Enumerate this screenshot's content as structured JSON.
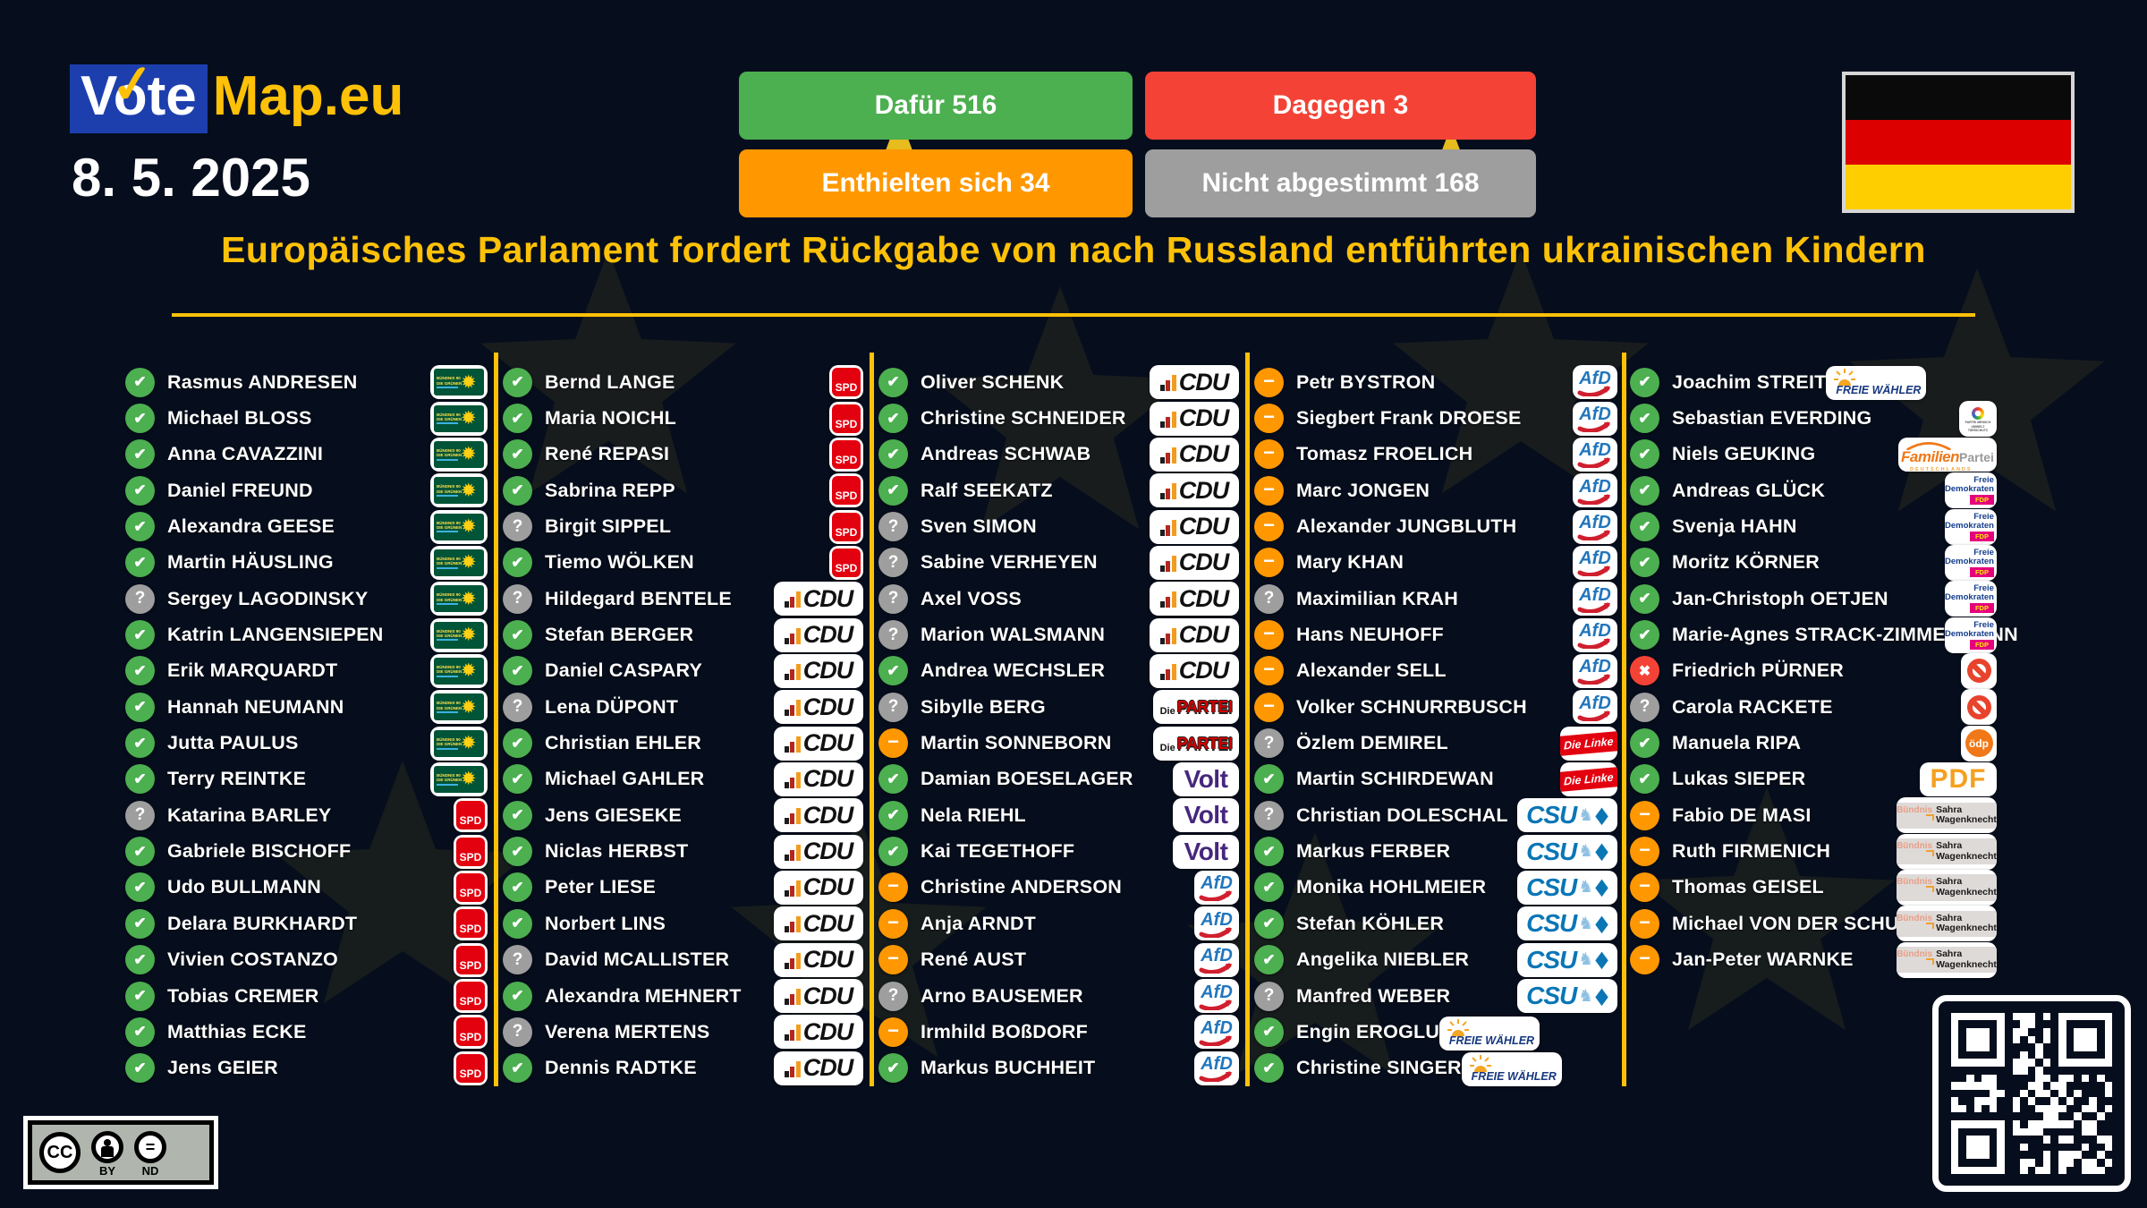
{
  "colors": {
    "accent": "#ffc107",
    "brand_blue": "#1d3fae",
    "background": "#060e1d"
  },
  "status_colors": {
    "yes": "#4caf50",
    "no": "#f44336",
    "abstain": "#ff9800",
    "unknown": "#9e9e9e"
  },
  "status_glyphs": {
    "yes": "✔",
    "no": "✖",
    "abstain": "−",
    "unknown": "?"
  },
  "header": {
    "brand": {
      "vote": "Vote",
      "map": "Map.eu",
      "check": "✓"
    },
    "date": "8. 5. 2025",
    "results": [
      {
        "label": "Dafür 516",
        "status": "yes"
      },
      {
        "label": "Dagegen 3",
        "status": "no"
      },
      {
        "label": "Enthielten sich 34",
        "status": "abstain"
      },
      {
        "label": "Nicht abgestimmt 168",
        "status": "unknown"
      }
    ],
    "flag": {
      "country": "Deutschland",
      "stripes": [
        "#0a0a0a",
        "#dd0000",
        "#ffce00"
      ]
    },
    "title": "Europäisches Parlament fordert Rückgabe von nach Russland entführten ukrainischen Kindern"
  },
  "license": {
    "cc": "CC",
    "by": "BY",
    "nd": "ND"
  },
  "parties": {
    "gruene": {
      "l1": "BÜNDNIS 90",
      "l2": "DIE GRÜNEN"
    },
    "spd": {
      "t": "SPD"
    },
    "cdu": {
      "t": "CDU"
    },
    "partei": {
      "p": "Die",
      "t": "PARTEI"
    },
    "volt": {
      "t": "Volt"
    },
    "afd": {
      "t": "AfD"
    },
    "linke": {
      "t": "Die Linke"
    },
    "csu": {
      "t": "CSU"
    },
    "fw": {
      "t": "FREIE WÄHLER"
    },
    "tierschutz": {
      "t": "PARTEI MENSCH UMWELT TIERSCHUTZ"
    },
    "familien": {
      "a": "Familien",
      "b": "Partei",
      "c": "DEUTSCHLANDS"
    },
    "fdp": {
      "a": "Freie",
      "b": "Demokraten",
      "c": "FDP"
    },
    "parteilos": {},
    "oedp": {
      "t": "ödp"
    },
    "pdf": {
      "t": "PDF"
    },
    "bsw": {
      "a": "Bündnis",
      "b": "Sahra",
      "c": "Wagenknecht"
    }
  },
  "columns": [
    [
      {
        "name": "Rasmus ANDRESEN",
        "vote": "yes",
        "party": "gruene"
      },
      {
        "name": "Michael BLOSS",
        "vote": "yes",
        "party": "gruene"
      },
      {
        "name": "Anna CAVAZZINI",
        "vote": "yes",
        "party": "gruene"
      },
      {
        "name": "Daniel FREUND",
        "vote": "yes",
        "party": "gruene"
      },
      {
        "name": "Alexandra GEESE",
        "vote": "yes",
        "party": "gruene"
      },
      {
        "name": "Martin HÄUSLING",
        "vote": "yes",
        "party": "gruene"
      },
      {
        "name": "Sergey LAGODINSKY",
        "vote": "unknown",
        "party": "gruene"
      },
      {
        "name": "Katrin LANGENSIEPEN",
        "vote": "yes",
        "party": "gruene"
      },
      {
        "name": "Erik MARQUARDT",
        "vote": "yes",
        "party": "gruene"
      },
      {
        "name": "Hannah NEUMANN",
        "vote": "yes",
        "party": "gruene"
      },
      {
        "name": "Jutta PAULUS",
        "vote": "yes",
        "party": "gruene"
      },
      {
        "name": "Terry REINTKE",
        "vote": "yes",
        "party": "gruene"
      },
      {
        "name": "Katarina BARLEY",
        "vote": "unknown",
        "party": "spd"
      },
      {
        "name": "Gabriele BISCHOFF",
        "vote": "yes",
        "party": "spd"
      },
      {
        "name": "Udo BULLMANN",
        "vote": "yes",
        "party": "spd"
      },
      {
        "name": "Delara BURKHARDT",
        "vote": "yes",
        "party": "spd"
      },
      {
        "name": "Vivien COSTANZO",
        "vote": "yes",
        "party": "spd"
      },
      {
        "name": "Tobias CREMER",
        "vote": "yes",
        "party": "spd"
      },
      {
        "name": "Matthias ECKE",
        "vote": "yes",
        "party": "spd"
      },
      {
        "name": "Jens GEIER",
        "vote": "yes",
        "party": "spd"
      }
    ],
    [
      {
        "name": "Bernd LANGE",
        "vote": "yes",
        "party": "spd"
      },
      {
        "name": "Maria NOICHL",
        "vote": "yes",
        "party": "spd"
      },
      {
        "name": "René REPASI",
        "vote": "yes",
        "party": "spd"
      },
      {
        "name": "Sabrina REPP",
        "vote": "yes",
        "party": "spd"
      },
      {
        "name": "Birgit SIPPEL",
        "vote": "unknown",
        "party": "spd"
      },
      {
        "name": "Tiemo WÖLKEN",
        "vote": "yes",
        "party": "spd"
      },
      {
        "name": "Hildegard BENTELE",
        "vote": "unknown",
        "party": "cdu"
      },
      {
        "name": "Stefan BERGER",
        "vote": "yes",
        "party": "cdu"
      },
      {
        "name": "Daniel CASPARY",
        "vote": "yes",
        "party": "cdu"
      },
      {
        "name": "Lena DÜPONT",
        "vote": "unknown",
        "party": "cdu"
      },
      {
        "name": "Christian EHLER",
        "vote": "yes",
        "party": "cdu"
      },
      {
        "name": "Michael GAHLER",
        "vote": "yes",
        "party": "cdu"
      },
      {
        "name": "Jens GIESEKE",
        "vote": "yes",
        "party": "cdu"
      },
      {
        "name": "Niclas HERBST",
        "vote": "yes",
        "party": "cdu"
      },
      {
        "name": "Peter LIESE",
        "vote": "yes",
        "party": "cdu"
      },
      {
        "name": "Norbert LINS",
        "vote": "yes",
        "party": "cdu"
      },
      {
        "name": "David MCALLISTER",
        "vote": "unknown",
        "party": "cdu"
      },
      {
        "name": "Alexandra MEHNERT",
        "vote": "yes",
        "party": "cdu"
      },
      {
        "name": "Verena MERTENS",
        "vote": "unknown",
        "party": "cdu"
      },
      {
        "name": "Dennis RADTKE",
        "vote": "yes",
        "party": "cdu"
      }
    ],
    [
      {
        "name": "Oliver SCHENK",
        "vote": "yes",
        "party": "cdu"
      },
      {
        "name": "Christine SCHNEIDER",
        "vote": "yes",
        "party": "cdu"
      },
      {
        "name": "Andreas SCHWAB",
        "vote": "yes",
        "party": "cdu"
      },
      {
        "name": "Ralf SEEKATZ",
        "vote": "yes",
        "party": "cdu"
      },
      {
        "name": "Sven SIMON",
        "vote": "unknown",
        "party": "cdu"
      },
      {
        "name": "Sabine VERHEYEN",
        "vote": "unknown",
        "party": "cdu"
      },
      {
        "name": "Axel VOSS",
        "vote": "unknown",
        "party": "cdu"
      },
      {
        "name": "Marion WALSMANN",
        "vote": "unknown",
        "party": "cdu"
      },
      {
        "name": "Andrea WECHSLER",
        "vote": "yes",
        "party": "cdu"
      },
      {
        "name": "Sibylle BERG",
        "vote": "unknown",
        "party": "partei"
      },
      {
        "name": "Martin SONNEBORN",
        "vote": "abstain",
        "party": "partei"
      },
      {
        "name": "Damian BOESELAGER",
        "vote": "yes",
        "party": "volt"
      },
      {
        "name": "Nela RIEHL",
        "vote": "yes",
        "party": "volt"
      },
      {
        "name": "Kai TEGETHOFF",
        "vote": "yes",
        "party": "volt"
      },
      {
        "name": "Christine ANDERSON",
        "vote": "abstain",
        "party": "afd"
      },
      {
        "name": "Anja ARNDT",
        "vote": "abstain",
        "party": "afd"
      },
      {
        "name": "René AUST",
        "vote": "abstain",
        "party": "afd"
      },
      {
        "name": "Arno BAUSEMER",
        "vote": "unknown",
        "party": "afd"
      },
      {
        "name": "Irmhild BOßDORF",
        "vote": "abstain",
        "party": "afd"
      },
      {
        "name": "Markus BUCHHEIT",
        "vote": "yes",
        "party": "afd"
      }
    ],
    [
      {
        "name": "Petr BYSTRON",
        "vote": "abstain",
        "party": "afd"
      },
      {
        "name": "Siegbert Frank DROESE",
        "vote": "abstain",
        "party": "afd"
      },
      {
        "name": "Tomasz FROELICH",
        "vote": "abstain",
        "party": "afd"
      },
      {
        "name": "Marc JONGEN",
        "vote": "abstain",
        "party": "afd"
      },
      {
        "name": "Alexander JUNGBLUTH",
        "vote": "abstain",
        "party": "afd"
      },
      {
        "name": "Mary KHAN",
        "vote": "abstain",
        "party": "afd"
      },
      {
        "name": "Maximilian KRAH",
        "vote": "unknown",
        "party": "afd"
      },
      {
        "name": "Hans NEUHOFF",
        "vote": "abstain",
        "party": "afd"
      },
      {
        "name": "Alexander SELL",
        "vote": "abstain",
        "party": "afd"
      },
      {
        "name": "Volker SCHNURRBUSCH",
        "vote": "abstain",
        "party": "afd"
      },
      {
        "name": "Özlem DEMIREL",
        "vote": "unknown",
        "party": "linke"
      },
      {
        "name": "Martin SCHIRDEWAN",
        "vote": "yes",
        "party": "linke"
      },
      {
        "name": "Christian DOLESCHAL",
        "vote": "unknown",
        "party": "csu"
      },
      {
        "name": "Markus FERBER",
        "vote": "yes",
        "party": "csu"
      },
      {
        "name": "Monika HOHLMEIER",
        "vote": "yes",
        "party": "csu"
      },
      {
        "name": "Stefan KÖHLER",
        "vote": "yes",
        "party": "csu"
      },
      {
        "name": "Angelika NIEBLER",
        "vote": "yes",
        "party": "csu"
      },
      {
        "name": "Manfred WEBER",
        "vote": "unknown",
        "party": "csu"
      },
      {
        "name": "Engin EROGLU",
        "vote": "yes",
        "party": "fw"
      },
      {
        "name": "Christine SINGER",
        "vote": "yes",
        "party": "fw"
      }
    ],
    [
      {
        "name": "Joachim STREIT",
        "vote": "yes",
        "party": "fw"
      },
      {
        "name": "Sebastian EVERDING",
        "vote": "yes",
        "party": "tierschutz"
      },
      {
        "name": "Niels GEUKING",
        "vote": "yes",
        "party": "familien"
      },
      {
        "name": "Andreas GLÜCK",
        "vote": "yes",
        "party": "fdp"
      },
      {
        "name": "Svenja HAHN",
        "vote": "yes",
        "party": "fdp"
      },
      {
        "name": "Moritz KÖRNER",
        "vote": "yes",
        "party": "fdp"
      },
      {
        "name": "Jan-Christoph OETJEN",
        "vote": "yes",
        "party": "fdp"
      },
      {
        "name": "Marie-Agnes STRACK-ZIMMERMANN",
        "vote": "yes",
        "party": "fdp"
      },
      {
        "name": "Friedrich PÜRNER",
        "vote": "no",
        "party": "parteilos"
      },
      {
        "name": "Carola RACKETE",
        "vote": "unknown",
        "party": "parteilos"
      },
      {
        "name": "Manuela RIPA",
        "vote": "yes",
        "party": "oedp"
      },
      {
        "name": "Lukas SIEPER",
        "vote": "yes",
        "party": "pdf"
      },
      {
        "name": "Fabio DE MASI",
        "vote": "abstain",
        "party": "bsw"
      },
      {
        "name": "Ruth FIRMENICH",
        "vote": "abstain",
        "party": "bsw"
      },
      {
        "name": "Thomas GEISEL",
        "vote": "abstain",
        "party": "bsw"
      },
      {
        "name": "Michael VON DER SCHULENBURG",
        "vote": "abstain",
        "party": "bsw"
      },
      {
        "name": "Jan-Peter WARNKE",
        "vote": "abstain",
        "party": "bsw"
      }
    ]
  ]
}
